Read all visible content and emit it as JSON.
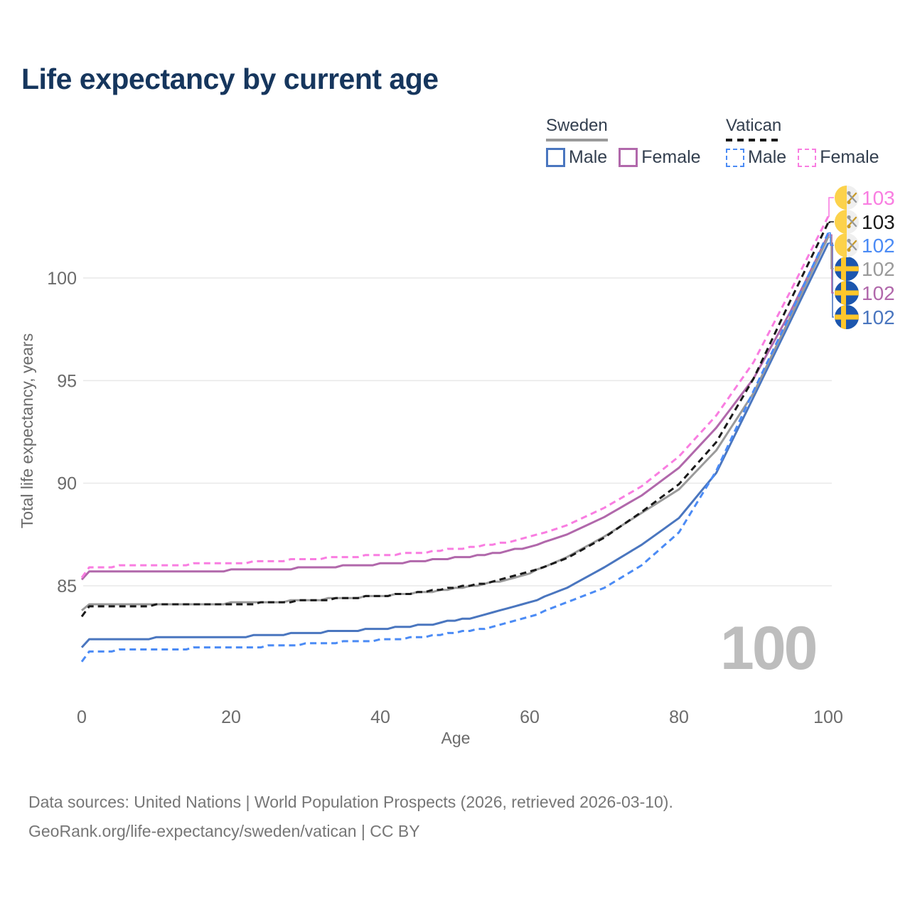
{
  "title": "Life expectancy by current age",
  "legend": {
    "groups": [
      {
        "label": "Sweden",
        "line_style": "solid",
        "color": "#9a9a9a",
        "items": [
          {
            "label": "Male",
            "color": "#4a76bf"
          },
          {
            "label": "Female",
            "color": "#b168ab"
          }
        ]
      },
      {
        "label": "Vatican",
        "line_style": "dashed",
        "color": "#1a1a1a",
        "items": [
          {
            "label": "Male",
            "color": "#4b8bf5"
          },
          {
            "label": "Female",
            "color": "#f97de1"
          }
        ]
      }
    ]
  },
  "chart_data": {
    "type": "line",
    "title": "Life expectancy by current age",
    "xlabel": "Age",
    "ylabel": "Total life expectancy, years",
    "xlim": [
      0,
      100
    ],
    "ylim": [
      81,
      103.5
    ],
    "xticks": [
      0,
      20,
      40,
      60,
      80,
      100
    ],
    "yticks": [
      85,
      90,
      95,
      100
    ],
    "grid": "horizontal",
    "legend_position": "top-right",
    "watermark": "100",
    "x_anchor_ages": [
      0,
      1,
      5,
      10,
      15,
      20,
      25,
      30,
      35,
      40,
      45,
      50,
      55,
      60,
      65,
      70,
      75,
      80,
      85,
      90,
      95,
      100
    ],
    "series": [
      {
        "id": "sweden-male",
        "name": "Sweden Male",
        "country": "Sweden",
        "sex": "Male",
        "flag": "sweden",
        "color": "#4a76bf",
        "dash": false,
        "row": 5,
        "end_label": "102",
        "values": [
          82.0,
          82.35,
          82.4,
          82.45,
          82.45,
          82.5,
          82.6,
          82.7,
          82.8,
          82.9,
          83.05,
          83.3,
          83.65,
          84.2,
          84.9,
          85.9,
          87.0,
          88.3,
          90.5,
          94.2,
          97.95,
          101.7
        ]
      },
      {
        "id": "sweden-female",
        "name": "Sweden Female",
        "country": "Sweden",
        "sex": "Female",
        "flag": "sweden",
        "color": "#b168ab",
        "dash": false,
        "row": 4,
        "end_label": "102",
        "values": [
          85.3,
          85.65,
          85.68,
          85.7,
          85.72,
          85.75,
          85.8,
          85.88,
          85.95,
          86.05,
          86.2,
          86.35,
          86.55,
          86.9,
          87.5,
          88.35,
          89.4,
          90.75,
          92.7,
          95.1,
          98.4,
          102.1
        ]
      },
      {
        "id": "sweden-total",
        "name": "Sweden",
        "country": "Sweden",
        "sex": "Both",
        "flag": "sweden",
        "color": "#9a9a9a",
        "dash": false,
        "row": 3,
        "end_label": "102",
        "values": [
          83.75,
          84.05,
          84.08,
          84.1,
          84.12,
          84.15,
          84.2,
          84.3,
          84.4,
          84.5,
          84.65,
          84.85,
          85.15,
          85.6,
          86.4,
          87.4,
          88.55,
          89.7,
          91.6,
          94.4,
          98.15,
          102.0
        ]
      },
      {
        "id": "vatican-total",
        "name": "Vatican",
        "country": "Vatican",
        "sex": "Both",
        "flag": "vatican",
        "color": "#1a1a1a",
        "dash": true,
        "row": 1,
        "end_label": "103",
        "values": [
          83.5,
          83.95,
          84.0,
          84.05,
          84.08,
          84.1,
          84.18,
          84.28,
          84.38,
          84.5,
          84.65,
          84.9,
          85.2,
          85.65,
          86.35,
          87.35,
          88.6,
          89.95,
          92.0,
          95.1,
          98.95,
          102.7
        ]
      },
      {
        "id": "vatican-female",
        "name": "Vatican Female",
        "country": "Vatican",
        "sex": "Female",
        "flag": "vatican",
        "color": "#f97de1",
        "dash": true,
        "row": 0,
        "end_label": "103",
        "values": [
          85.4,
          85.85,
          85.95,
          86.0,
          86.05,
          86.1,
          86.2,
          86.3,
          86.4,
          86.5,
          86.6,
          86.8,
          87.0,
          87.35,
          87.95,
          88.8,
          89.85,
          91.3,
          93.3,
          95.9,
          99.4,
          103.0
        ]
      },
      {
        "id": "vatican-male",
        "name": "Vatican Male",
        "country": "Vatican",
        "sex": "Male",
        "flag": "vatican",
        "color": "#4b8bf5",
        "dash": true,
        "row": 2,
        "end_label": "102",
        "values": [
          81.3,
          81.75,
          81.85,
          81.9,
          81.95,
          82.0,
          82.05,
          82.15,
          82.25,
          82.35,
          82.5,
          82.7,
          83.0,
          83.5,
          84.2,
          84.9,
          86.0,
          87.6,
          90.6,
          94.5,
          98.3,
          102.2
        ]
      }
    ],
    "flag_colors": {
      "sweden_blue": "#1c56ae",
      "sweden_yellow": "#fec72a",
      "vatican_yellow": "#fcd24b",
      "vatican_white": "#efefef",
      "key_gold": "#c89b2a",
      "key_silver": "#95989c"
    }
  },
  "footer": {
    "line1": "Data sources: United Nations | World Population Prospects (2026, retrieved 2026-03-10).",
    "line2": "GeoRank.org/life-expectancy/sweden/vatican | CC BY"
  }
}
